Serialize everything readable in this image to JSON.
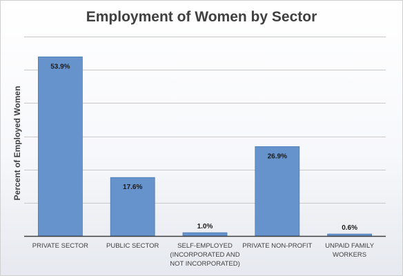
{
  "chart_data": {
    "type": "bar",
    "title": "Employment of Women by Sector",
    "xlabel": "",
    "ylabel": "Percent of Employed Women",
    "categories": [
      [
        "PRIVATE SECTOR"
      ],
      [
        "PUBLIC SECTOR"
      ],
      [
        "SELF-EMPLOYED",
        "(INCORPORATED AND",
        "NOT INCORPORATED)"
      ],
      [
        "PRIVATE NON-PROFIT"
      ],
      [
        "UNPAID FAMILY",
        "WORKERS"
      ]
    ],
    "values": [
      53.9,
      17.6,
      1.0,
      26.9,
      0.6
    ],
    "data_labels": [
      "53.9%",
      "17.6%",
      "1.0%",
      "26.9%",
      "0.6%"
    ],
    "ylim": [
      0,
      60
    ],
    "ytick_values": [
      0,
      10,
      20,
      30,
      40,
      50,
      60
    ],
    "ytick_labels_shown": false,
    "grid": true,
    "bar_color": "#6693cc",
    "bar_edge_color": "#4f7bb5",
    "grid_color": "#c9c9c9",
    "axis_color": "#3f3f3f",
    "text_color": "#404040"
  }
}
